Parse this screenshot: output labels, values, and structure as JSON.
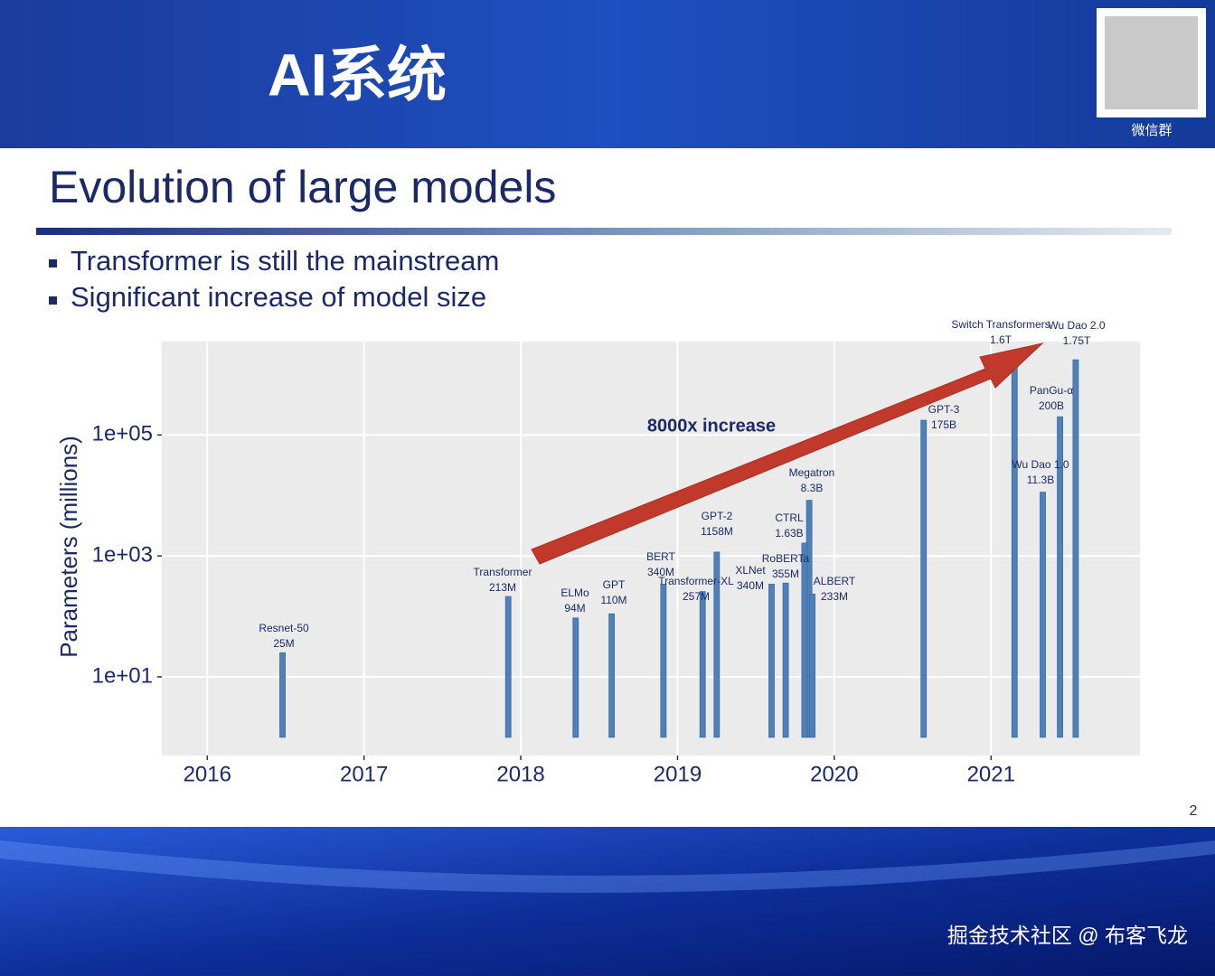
{
  "header": {
    "title": "AI系统",
    "qr_caption": "微信群"
  },
  "slide": {
    "title": "Evolution of large models",
    "bullets": [
      "Transformer is still the mainstream",
      "Significant increase of model size"
    ],
    "page_number": "2"
  },
  "watermark": "掘金技术社区 @ 布客飞龙",
  "chart_data": {
    "type": "bar",
    "ylabel": "Parameters (millions)",
    "annotation": "8000x increase",
    "log_y": true,
    "grid": true,
    "color": "#4f81b8",
    "x": [
      2016.48,
      2017.92,
      2018.35,
      2018.58,
      2018.91,
      2019.16,
      2019.25,
      2019.6,
      2019.69,
      2019.84,
      2019.81,
      2019.86,
      2020.57,
      2021.15,
      2021.33,
      2021.44,
      2021.54
    ],
    "labels": [
      "Resnet-50",
      "Transformer",
      "ELMo",
      "GPT",
      "BERT",
      "Transformer-XL",
      "GPT-2",
      "XLNet",
      "RoBERTa",
      "Megatron",
      "CTRL",
      "ALBERT",
      "GPT-3",
      "Switch Transformers",
      "Wu Dao 1.0",
      "PanGu-α",
      "Wu Dao 2.0"
    ],
    "values": [
      25,
      213,
      94,
      110,
      340,
      257,
      1158,
      340,
      355,
      8300,
      1630,
      233,
      175000,
      1600000,
      11300,
      200000,
      1750000
    ],
    "value_labels": [
      "25M",
      "213M",
      "94M",
      "110M",
      "340M",
      "257M",
      "1158M",
      "340M",
      "355M",
      "8.3B",
      "1.63B",
      "233M",
      "175B",
      "1.6T",
      "11.3B",
      "200B",
      "1.75T"
    ],
    "xlim": [
      2015.71,
      2021.95
    ],
    "xticks": [
      2016,
      2017,
      2018,
      2019,
      2020,
      2021
    ],
    "ylim": [
      0.5,
      3500000
    ],
    "yticks": [
      {
        "value": 10,
        "label": "1e+01"
      },
      {
        "value": 1000,
        "label": "1e+03"
      },
      {
        "value": 100000,
        "label": "1e+05"
      }
    ]
  }
}
